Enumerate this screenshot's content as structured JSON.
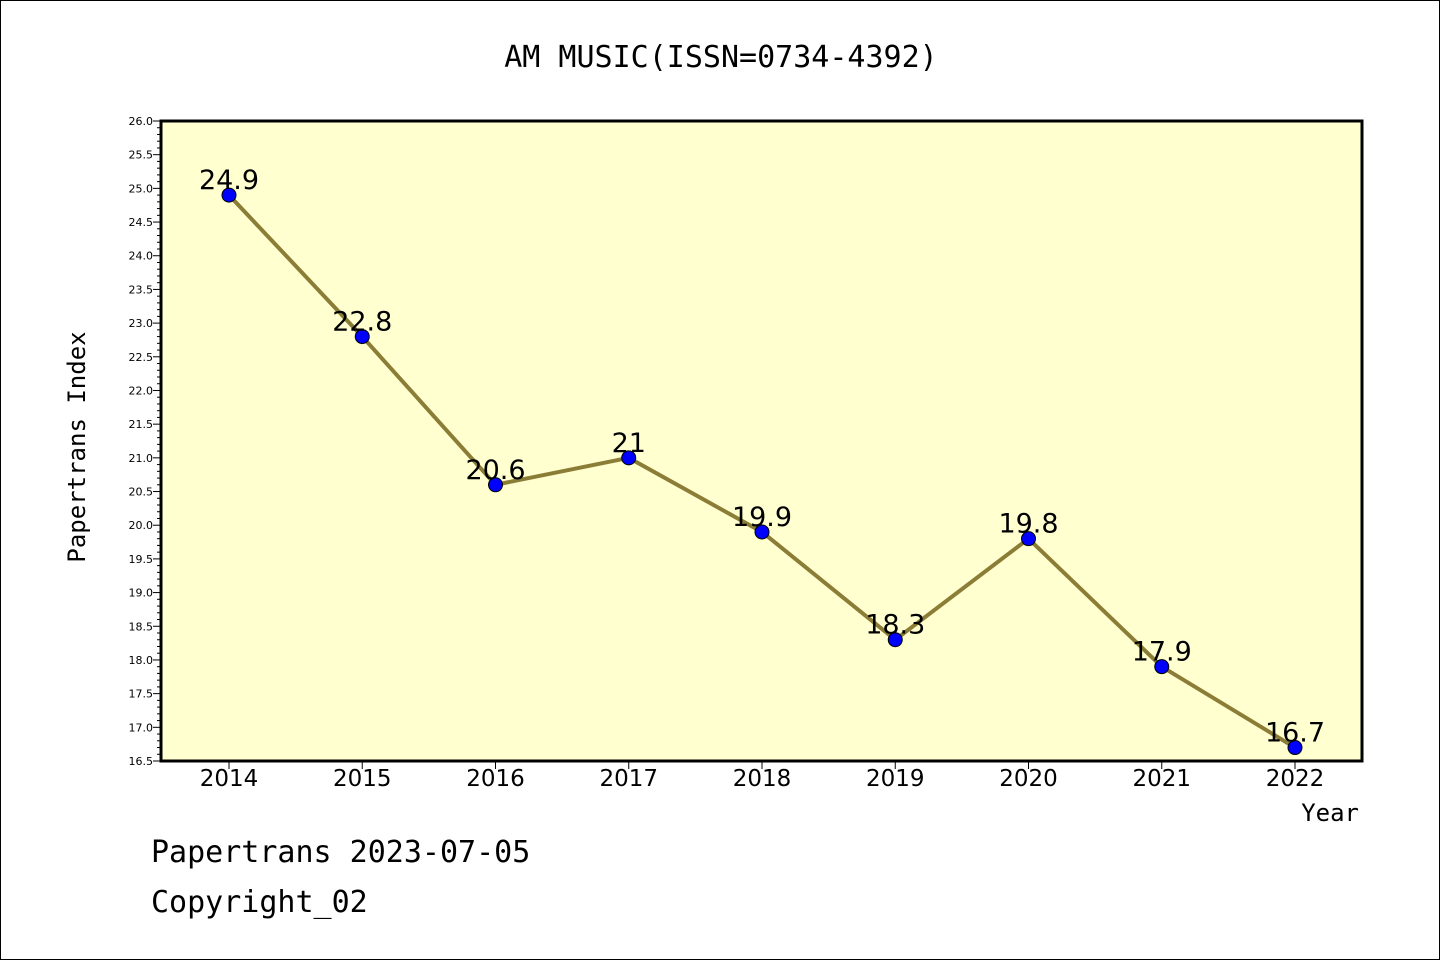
{
  "chart_data": {
    "type": "line",
    "title": "AM MUSIC(ISSN=0734-4392)",
    "xlabel": "Year",
    "ylabel": "Papertrans Index",
    "x": [
      "2014",
      "2015",
      "2016",
      "2017",
      "2018",
      "2019",
      "2020",
      "2021",
      "2022"
    ],
    "series": [
      {
        "values": [
          24.9,
          22.8,
          20.6,
          21.0,
          19.9,
          18.3,
          19.8,
          17.9,
          16.7
        ],
        "labels": [
          "24.9",
          "22.8",
          "20.6",
          "21",
          "19.9",
          "18.3",
          "19.8",
          "17.9",
          "16.7"
        ]
      }
    ],
    "ylim": [
      16.5,
      26.0
    ],
    "yticks": [
      "16.5",
      "17.0",
      "17.5",
      "18.0",
      "18.5",
      "19.0",
      "19.5",
      "20.0",
      "20.5",
      "21.0",
      "21.5",
      "22.0",
      "22.5",
      "23.0",
      "23.5",
      "24.0",
      "24.5",
      "25.0",
      "25.5",
      "26.0"
    ],
    "grid": false,
    "colors": {
      "plot_background": "#ffffd0",
      "line": "#8b7d36",
      "marker": "#0000ff"
    }
  },
  "footer": {
    "line1": "Papertrans 2023-07-05",
    "line2": "Copyright_02"
  }
}
